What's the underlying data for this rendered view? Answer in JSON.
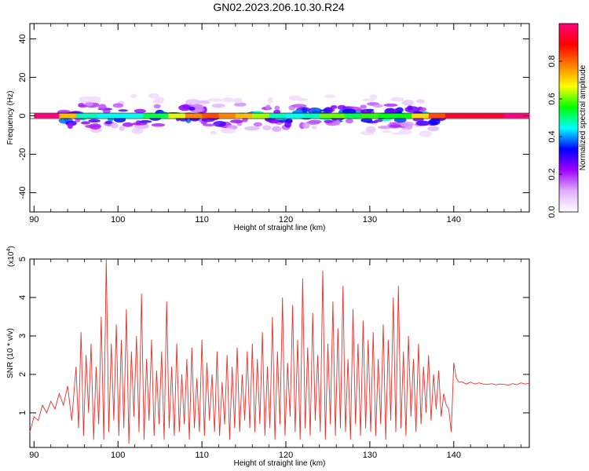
{
  "title": "GN02.2023.206.10.30.R24",
  "chart_data": [
    {
      "type": "heatmap",
      "xlabel": "Height of straight line (km)",
      "ylabel": "Frequency (Hz)",
      "xlim": [
        89.5,
        149
      ],
      "ylim": [
        -50,
        48
      ],
      "xticks": [
        90,
        100,
        110,
        120,
        130,
        140
      ],
      "yticks": [
        -40,
        -20,
        0,
        20,
        40
      ],
      "colorbar": {
        "label": "Normalized spectral amplitude",
        "range": [
          0,
          1
        ],
        "ticks": [
          "0.0",
          "0.2",
          "0.4",
          "0.6",
          "0.8"
        ],
        "colors": [
          "#ffffff",
          "#e0b0ff",
          "#a000ff",
          "#0000ff",
          "#00ffff",
          "#00ff00",
          "#ffff00",
          "#ff8000",
          "#ff0000",
          "#ff0080"
        ]
      },
      "ridge": [
        {
          "x": 90.0,
          "amp": 1.0
        },
        {
          "x": 93.0,
          "amp": 1.0
        },
        {
          "x": 95.0,
          "amp": 0.45
        },
        {
          "x": 97.5,
          "amp": 0.5
        },
        {
          "x": 100.0,
          "amp": 0.4
        },
        {
          "x": 103.0,
          "amp": 0.5
        },
        {
          "x": 106.0,
          "amp": 0.55
        },
        {
          "x": 108.0,
          "amp": 0.75
        },
        {
          "x": 110.0,
          "amp": 0.8
        },
        {
          "x": 112.0,
          "amp": 0.85
        },
        {
          "x": 114.0,
          "amp": 0.7
        },
        {
          "x": 116.0,
          "amp": 0.75
        },
        {
          "x": 118.0,
          "amp": 0.5
        },
        {
          "x": 120.0,
          "amp": 0.45
        },
        {
          "x": 122.0,
          "amp": 0.45
        },
        {
          "x": 124.0,
          "amp": 0.5
        },
        {
          "x": 125.0,
          "amp": 0.7
        },
        {
          "x": 127.0,
          "amp": 0.5
        },
        {
          "x": 129.0,
          "amp": 0.55
        },
        {
          "x": 131.0,
          "amp": 0.6
        },
        {
          "x": 133.0,
          "amp": 0.5
        },
        {
          "x": 135.0,
          "amp": 0.6
        },
        {
          "x": 137.0,
          "amp": 0.8
        },
        {
          "x": 139.0,
          "amp": 0.85
        },
        {
          "x": 141.0,
          "amp": 1.0
        },
        {
          "x": 144.0,
          "amp": 0.85
        },
        {
          "x": 146.0,
          "amp": 1.0
        },
        {
          "x": 149.0,
          "amp": 1.0
        }
      ]
    },
    {
      "type": "line",
      "xlabel": "Height of straight line (km)",
      "ylabel": "SNR (10 * v/v)",
      "yscale_label": "(x10",
      "yscale_exp": "4",
      "yscale_close": ")",
      "xlim": [
        89.5,
        149
      ],
      "ylim": [
        0.1,
        5
      ],
      "xticks": [
        90,
        100,
        110,
        120,
        130,
        140
      ],
      "yticks": [
        1,
        2,
        3,
        4,
        5
      ],
      "color": "#e8302a",
      "series": [
        {
          "x": [
            89.5,
            90.0,
            90.5,
            91.0,
            91.5,
            92.0,
            92.5,
            93.0,
            93.5,
            94.0,
            94.5,
            95.0,
            95.3,
            95.6,
            95.9,
            96.2,
            96.5,
            96.8,
            97.1,
            97.4,
            97.7,
            98.0,
            98.3,
            98.6,
            98.9,
            99.2,
            99.5,
            99.8,
            100.1,
            100.4,
            100.7,
            101.0,
            101.3,
            101.6,
            101.9,
            102.2,
            102.5,
            102.8,
            103.1,
            103.4,
            103.7,
            104.0,
            104.3,
            104.6,
            104.9,
            105.2,
            105.5,
            105.8,
            106.1,
            106.4,
            106.7,
            107.0,
            107.3,
            107.6,
            107.9,
            108.2,
            108.5,
            108.8,
            109.1,
            109.4,
            109.7,
            110.0,
            110.3,
            110.6,
            110.9,
            111.2,
            111.5,
            111.8,
            112.1,
            112.4,
            112.7,
            113.0,
            113.3,
            113.6,
            113.9,
            114.2,
            114.5,
            114.8,
            115.1,
            115.4,
            115.7,
            116.0,
            116.3,
            116.6,
            116.9,
            117.2,
            117.5,
            117.8,
            118.1,
            118.4,
            118.7,
            119.0,
            119.3,
            119.6,
            119.9,
            120.2,
            120.5,
            120.8,
            121.1,
            121.4,
            121.7,
            122.0,
            122.3,
            122.6,
            122.9,
            123.2,
            123.5,
            123.8,
            124.1,
            124.4,
            124.7,
            125.0,
            125.3,
            125.6,
            125.9,
            126.2,
            126.5,
            126.8,
            127.1,
            127.4,
            127.7,
            128.0,
            128.3,
            128.6,
            128.9,
            129.2,
            129.5,
            129.8,
            130.1,
            130.4,
            130.7,
            131.0,
            131.3,
            131.6,
            131.9,
            132.2,
            132.5,
            132.8,
            133.1,
            133.4,
            133.7,
            134.0,
            134.3,
            134.6,
            134.9,
            135.2,
            135.5,
            135.8,
            136.1,
            136.4,
            136.7,
            137.0,
            137.3,
            137.6,
            137.9,
            138.2,
            138.5,
            138.8,
            139.1,
            139.4,
            139.7,
            140.0,
            140.3,
            140.6,
            141.0,
            141.5,
            142.0,
            142.5,
            143.0,
            143.5,
            144.0,
            144.5,
            145.0,
            145.5,
            146.0,
            146.5,
            147.0,
            147.5,
            148.0,
            148.5,
            149.0
          ],
          "values": [
            0.5,
            0.9,
            0.8,
            1.2,
            1.0,
            1.3,
            1.1,
            1.5,
            1.2,
            1.7,
            0.8,
            2.2,
            0.6,
            3.1,
            0.4,
            2.5,
            1.0,
            2.8,
            0.3,
            2.2,
            0.7,
            3.5,
            0.3,
            5.0,
            0.5,
            2.8,
            0.8,
            3.3,
            0.4,
            2.9,
            0.6,
            3.7,
            0.2,
            2.6,
            0.9,
            3.0,
            0.5,
            4.1,
            0.3,
            2.4,
            0.8,
            2.9,
            0.4,
            2.1,
            0.7,
            2.6,
            0.3,
            3.9,
            0.6,
            2.2,
            0.4,
            2.8,
            0.5,
            2.0,
            0.7,
            2.4,
            0.3,
            2.7,
            0.6,
            1.9,
            0.5,
            2.9,
            0.4,
            2.3,
            0.8,
            2.0,
            0.5,
            2.6,
            0.4,
            1.8,
            0.7,
            2.5,
            0.3,
            2.2,
            0.6,
            2.7,
            0.5,
            2.0,
            0.8,
            2.6,
            0.6,
            2.8,
            0.5,
            2.4,
            0.7,
            3.1,
            0.4,
            2.2,
            0.6,
            3.5,
            0.3,
            2.6,
            0.7,
            4.0,
            0.4,
            2.3,
            0.9,
            3.8,
            0.5,
            2.9,
            0.3,
            4.5,
            0.6,
            2.7,
            0.4,
            3.6,
            0.8,
            2.5,
            0.5,
            4.7,
            0.3,
            2.8,
            0.7,
            3.9,
            0.4,
            3.2,
            0.6,
            4.3,
            0.5,
            2.4,
            0.3,
            3.7,
            0.7,
            2.8,
            0.4,
            3.4,
            0.6,
            2.9,
            0.5,
            3.1,
            0.4,
            2.4,
            0.7,
            3.3,
            0.3,
            2.9,
            0.8,
            4.0,
            0.5,
            4.3,
            0.6,
            2.6,
            0.4,
            3.0,
            0.9,
            2.4,
            0.5,
            2.8,
            0.7,
            2.2,
            1.0,
            2.5,
            0.8,
            2.0,
            1.1,
            2.1,
            0.9,
            1.5,
            1.2,
            1.1,
            0.5,
            2.3,
            1.9,
            1.8,
            1.8,
            1.75,
            1.8,
            1.75,
            1.78,
            1.75,
            1.74,
            1.76,
            1.73,
            1.75,
            1.74,
            1.72,
            1.76,
            1.73,
            1.78,
            1.75,
            1.77
          ]
        }
      ]
    }
  ]
}
